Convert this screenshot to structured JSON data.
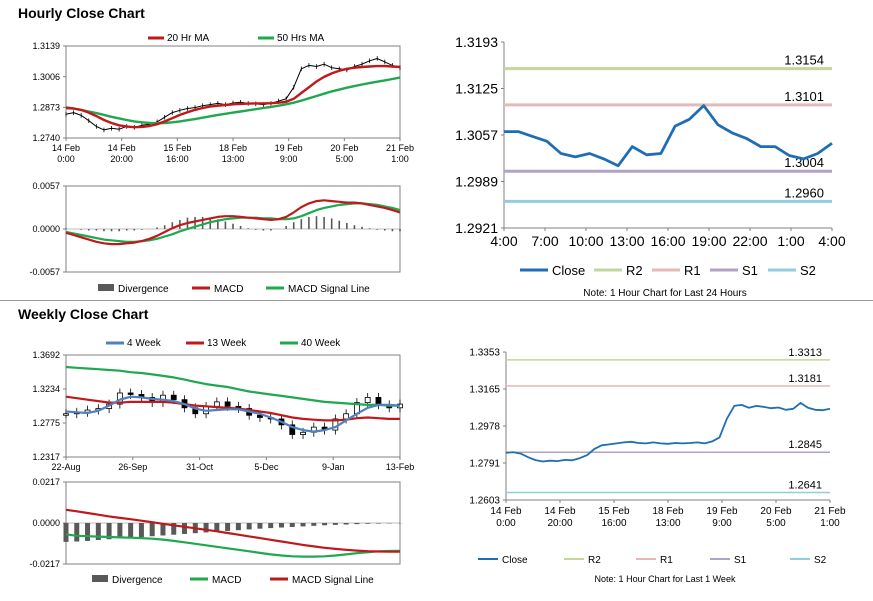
{
  "sections": {
    "hourly_title": "Hourly Close Chart",
    "weekly_title": "Weekly Close Chart"
  },
  "colors": {
    "red": "#c0191c",
    "green": "#1fa84f",
    "blue": "#4f81bd",
    "close_blue": "#1f6eb5",
    "r2": "#c3d69b",
    "r1": "#e6b9b8",
    "s1": "#b3a2c7",
    "s2": "#93cddd",
    "divergence": "#595959"
  },
  "chart_data": [
    {
      "id": "hourly-price",
      "type": "line",
      "ylim": [
        1.274,
        1.3139
      ],
      "yticks": [
        "1.3139",
        "1.3006",
        "1.2873",
        "1.2740"
      ],
      "xticks": [
        {
          "l1": "14 Feb",
          "l2": "0:00"
        },
        {
          "l1": "14 Feb",
          "l2": "20:00"
        },
        {
          "l1": "15 Feb",
          "l2": "16:00"
        },
        {
          "l1": "18 Feb",
          "l2": "13:00"
        },
        {
          "l1": "19 Feb",
          "l2": "9:00"
        },
        {
          "l1": "20 Feb",
          "l2": "5:00"
        },
        {
          "l1": "21 Feb",
          "l2": "1:00"
        }
      ],
      "legend": [
        "20 Hr MA",
        "50 Hrs MA"
      ],
      "series": [
        {
          "name": "Price",
          "values": [
            1.2843,
            1.285,
            1.2838,
            1.2815,
            1.279,
            1.2775,
            1.2782,
            1.2778,
            1.279,
            1.2786,
            1.2795,
            1.28,
            1.281,
            1.283,
            1.285,
            1.286,
            1.2868,
            1.2872,
            1.288,
            1.2885,
            1.289,
            1.2885,
            1.2892,
            1.2895,
            1.289,
            1.2888,
            1.2885,
            1.289,
            1.29,
            1.291,
            1.296,
            1.304,
            1.3055,
            1.305,
            1.306,
            1.3045,
            1.304,
            1.3035,
            1.305,
            1.306,
            1.3075,
            1.3085,
            1.307,
            1.3055,
            1.3045
          ]
        },
        {
          "name": "20 Hr MA",
          "values": [
            1.287,
            1.2868,
            1.2862,
            1.285,
            1.2835,
            1.2818,
            1.2805,
            1.2795,
            1.279,
            1.2787,
            1.2788,
            1.2792,
            1.28,
            1.2812,
            1.2826,
            1.284,
            1.2852,
            1.2862,
            1.287,
            1.2876,
            1.288,
            1.2883,
            1.2886,
            1.2888,
            1.2889,
            1.289,
            1.289,
            1.2891,
            1.2893,
            1.2897,
            1.291,
            1.2935,
            1.296,
            1.2985,
            1.3005,
            1.302,
            1.3032,
            1.304,
            1.3045,
            1.3048,
            1.305,
            1.3052,
            1.3052,
            1.305,
            1.3048
          ]
        },
        {
          "name": "50 Hrs MA",
          "values": [
            1.2873,
            1.2868,
            1.2862,
            1.2855,
            1.2848,
            1.284,
            1.2832,
            1.2825,
            1.2818,
            1.2812,
            1.2808,
            1.2805,
            1.2804,
            1.2805,
            1.2808,
            1.2812,
            1.2817,
            1.2822,
            1.2828,
            1.2834,
            1.284,
            1.2845,
            1.285,
            1.2855,
            1.286,
            1.2865,
            1.287,
            1.2875,
            1.288,
            1.2886,
            1.2893,
            1.2902,
            1.2912,
            1.2922,
            1.2932,
            1.2942,
            1.295,
            1.2958,
            1.2965,
            1.2972,
            1.2978,
            1.2984,
            1.299,
            1.2996,
            1.3002
          ]
        }
      ]
    },
    {
      "id": "hourly-macd",
      "type": "line",
      "ylim": [
        -0.0057,
        0.0057
      ],
      "yticks": [
        "0.0057",
        "0.0000",
        "-0.0057"
      ],
      "legend": [
        "Divergence",
        "MACD",
        "MACD Signal Line"
      ],
      "series": [
        {
          "name": "Divergence",
          "values": [
            0.0001,
            0.0,
            -0.0001,
            -0.0002,
            -0.0002,
            -0.0003,
            -0.0003,
            -0.0003,
            -0.0002,
            -0.0002,
            -0.0001,
            0.0,
            0.0002,
            0.0005,
            0.0009,
            0.0012,
            0.0015,
            0.0016,
            0.0016,
            0.0015,
            0.0013,
            0.001,
            0.0007,
            0.0004,
            0.0001,
            -0.0001,
            -0.0002,
            -0.0002,
            0.0,
            0.0004,
            0.0009,
            0.0013,
            0.0016,
            0.0017,
            0.0016,
            0.0014,
            0.0011,
            0.0008,
            0.0005,
            0.0003,
            0.0001,
            -0.0001,
            -0.0002,
            -0.0003,
            -0.0003
          ]
        },
        {
          "name": "MACD",
          "values": [
            -0.0005,
            -0.0008,
            -0.0011,
            -0.0014,
            -0.0017,
            -0.0019,
            -0.002,
            -0.002,
            -0.0019,
            -0.0018,
            -0.0016,
            -0.0013,
            -0.0009,
            -0.0004,
            0.0001,
            0.0005,
            0.0008,
            0.001,
            0.0012,
            0.0014,
            0.0016,
            0.0017,
            0.0017,
            0.0016,
            0.0015,
            0.0014,
            0.0013,
            0.0012,
            0.0013,
            0.0016,
            0.0022,
            0.0029,
            0.0034,
            0.0037,
            0.0038,
            0.0037,
            0.0036,
            0.0035,
            0.0035,
            0.0034,
            0.0032,
            0.003,
            0.0028,
            0.0025,
            0.0022
          ]
        },
        {
          "name": "MACD Signal Line",
          "values": [
            -0.0004,
            -0.0006,
            -0.0008,
            -0.001,
            -0.0012,
            -0.0014,
            -0.0015,
            -0.0016,
            -0.0017,
            -0.0017,
            -0.0016,
            -0.0015,
            -0.0013,
            -0.001,
            -0.0007,
            -0.0003,
            0.0,
            0.0003,
            0.0006,
            0.0009,
            0.0011,
            0.0013,
            0.0014,
            0.0015,
            0.0015,
            0.0015,
            0.0014,
            0.0014,
            0.0013,
            0.0013,
            0.0014,
            0.0017,
            0.0021,
            0.0025,
            0.0028,
            0.003,
            0.0032,
            0.0033,
            0.0034,
            0.0034,
            0.0033,
            0.0032,
            0.003,
            0.0028,
            0.0025
          ]
        }
      ]
    },
    {
      "id": "hourly-pivot",
      "type": "line",
      "ylim": [
        1.2921,
        1.3193
      ],
      "yticks": [
        "1.3193",
        "1.3125",
        "1.3057",
        "1.2989",
        "1.2921"
      ],
      "xticks": [
        "4:00",
        "7:00",
        "10:00",
        "13:00",
        "16:00",
        "19:00",
        "22:00",
        "1:00",
        "4:00"
      ],
      "levels": [
        {
          "name": "R2",
          "value": 1.3154,
          "label": "1.3154"
        },
        {
          "name": "R1",
          "value": 1.3101,
          "label": "1.3101"
        },
        {
          "name": "S1",
          "value": 1.3004,
          "label": "1.3004"
        },
        {
          "name": "S2",
          "value": 1.296,
          "label": "1.2960"
        }
      ],
      "legend": [
        "Close",
        "R2",
        "R1",
        "S1",
        "S2"
      ],
      "note": "Note: 1 Hour Chart for Last 24 Hours",
      "series": [
        {
          "name": "Close",
          "values": [
            1.3062,
            1.3062,
            1.3055,
            1.3048,
            1.303,
            1.3025,
            1.303,
            1.3022,
            1.3012,
            1.304,
            1.3028,
            1.303,
            1.307,
            1.308,
            1.31,
            1.3072,
            1.306,
            1.3052,
            1.304,
            1.304,
            1.3027,
            1.3022,
            1.303,
            1.3045
          ]
        }
      ]
    },
    {
      "id": "weekly-price",
      "type": "line",
      "ylim": [
        1.2317,
        1.3692
      ],
      "yticks": [
        "1.3692",
        "1.3234",
        "1.2775",
        "1.2317"
      ],
      "xticks": [
        "22-Aug",
        "26-Sep",
        "31-Oct",
        "5-Dec",
        "9-Jan",
        "13-Feb"
      ],
      "legend": [
        "4 Week",
        "13 Week",
        "40 Week"
      ],
      "series": [
        {
          "name": "Price",
          "values": [
            1.29,
            1.292,
            1.295,
            1.297,
            1.303,
            1.318,
            1.316,
            1.312,
            1.305,
            1.315,
            1.309,
            1.298,
            1.29,
            1.3,
            1.306,
            1.3,
            1.297,
            1.288,
            1.285,
            1.283,
            1.275,
            1.262,
            1.265,
            1.272,
            1.268,
            1.283,
            1.29,
            1.305,
            1.312,
            1.302,
            1.298,
            1.303
          ]
        },
        {
          "name": "4 Week",
          "values": [
            1.293,
            1.292,
            1.291,
            1.294,
            1.301,
            1.309,
            1.313,
            1.312,
            1.31,
            1.309,
            1.307,
            1.303,
            1.297,
            1.294,
            1.295,
            1.296,
            1.296,
            1.293,
            1.29,
            1.285,
            1.279,
            1.272,
            1.268,
            1.266,
            1.268,
            1.272,
            1.281,
            1.29,
            1.298,
            1.302,
            1.302,
            1.301
          ]
        },
        {
          "name": "13 Week",
          "values": [
            1.313,
            1.311,
            1.309,
            1.307,
            1.305,
            1.305,
            1.306,
            1.306,
            1.306,
            1.306,
            1.305,
            1.303,
            1.301,
            1.3,
            1.299,
            1.298,
            1.297,
            1.295,
            1.293,
            1.291,
            1.288,
            1.285,
            1.283,
            1.282,
            1.281,
            1.281,
            1.282,
            1.284,
            1.285,
            1.284,
            1.283,
            1.283
          ]
        },
        {
          "name": "40 Week",
          "values": [
            1.353,
            1.352,
            1.351,
            1.35,
            1.349,
            1.348,
            1.346,
            1.345,
            1.343,
            1.341,
            1.339,
            1.336,
            1.333,
            1.33,
            1.328,
            1.326,
            1.323,
            1.32,
            1.318,
            1.316,
            1.314,
            1.312,
            1.31,
            1.308,
            1.306,
            1.305,
            1.304,
            1.303,
            1.302,
            1.302,
            1.301,
            1.301
          ]
        }
      ]
    },
    {
      "id": "weekly-macd",
      "type": "line",
      "ylim": [
        -0.0217,
        0.0217
      ],
      "yticks": [
        "0.0217",
        "0.0000",
        "-0.0217"
      ],
      "legend": [
        "Divergence",
        "MACD",
        "MACD Signal Line"
      ],
      "series": [
        {
          "name": "Divergence",
          "values": [
            -0.01,
            -0.0098,
            -0.0095,
            -0.009,
            -0.0086,
            -0.0082,
            -0.0078,
            -0.0074,
            -0.007,
            -0.0066,
            -0.0062,
            -0.0058,
            -0.0054,
            -0.005,
            -0.0046,
            -0.0042,
            -0.0038,
            -0.0034,
            -0.003,
            -0.0027,
            -0.0024,
            -0.0021,
            -0.0018,
            -0.0015,
            -0.0012,
            -0.001,
            -0.0008,
            -0.0006,
            -0.0004,
            -0.0003,
            -0.0002,
            -0.0001
          ]
        },
        {
          "name": "MACD",
          "values": [
            -0.006,
            -0.0068,
            -0.007,
            -0.0072,
            -0.0074,
            -0.0076,
            -0.0078,
            -0.008,
            -0.0083,
            -0.0088,
            -0.0095,
            -0.0102,
            -0.011,
            -0.0118,
            -0.0126,
            -0.0134,
            -0.0142,
            -0.015,
            -0.0158,
            -0.0166,
            -0.0172,
            -0.0176,
            -0.0178,
            -0.0178,
            -0.0176,
            -0.0172,
            -0.0166,
            -0.016,
            -0.0155,
            -0.015,
            -0.0148,
            -0.0147
          ]
        },
        {
          "name": "MACD Signal Line",
          "values": [
            0.007,
            0.0062,
            0.0053,
            0.0044,
            0.0035,
            0.0027,
            0.002,
            0.0012,
            0.0004,
            -0.0004,
            -0.0012,
            -0.002,
            -0.0028,
            -0.0036,
            -0.0044,
            -0.0053,
            -0.0062,
            -0.0071,
            -0.008,
            -0.0089,
            -0.0098,
            -0.0107,
            -0.0116,
            -0.0124,
            -0.0131,
            -0.0137,
            -0.0142,
            -0.0146,
            -0.0149,
            -0.0151,
            -0.0152,
            -0.0152
          ]
        }
      ]
    },
    {
      "id": "weekly-pivot",
      "type": "line",
      "ylim": [
        1.2603,
        1.3353
      ],
      "yticks": [
        "1.3353",
        "1.3165",
        "1.2978",
        "1.2791",
        "1.2603"
      ],
      "xticks": [
        {
          "l1": "14 Feb",
          "l2": "0:00"
        },
        {
          "l1": "14 Feb",
          "l2": "20:00"
        },
        {
          "l1": "15 Feb",
          "l2": "16:00"
        },
        {
          "l1": "18 Feb",
          "l2": "13:00"
        },
        {
          "l1": "19 Feb",
          "l2": "9:00"
        },
        {
          "l1": "20 Feb",
          "l2": "5:00"
        },
        {
          "l1": "21 Feb",
          "l2": "1:00"
        }
      ],
      "levels": [
        {
          "name": "R2",
          "value": 1.3313,
          "label": "1.3313"
        },
        {
          "name": "R1",
          "value": 1.3181,
          "label": "1.3181"
        },
        {
          "name": "S1",
          "value": 1.2845,
          "label": "1.2845"
        },
        {
          "name": "S2",
          "value": 1.2641,
          "label": "1.2641"
        }
      ],
      "legend": [
        "Close",
        "R2",
        "R1",
        "S1",
        "S2"
      ],
      "note": "Note: 1 Hour Chart for Last 1 Week",
      "series": [
        {
          "name": "Close",
          "values": [
            1.2842,
            1.2845,
            1.2838,
            1.282,
            1.2805,
            1.2798,
            1.2802,
            1.28,
            1.2806,
            1.2804,
            1.2815,
            1.283,
            1.2862,
            1.288,
            1.2885,
            1.289,
            1.2895,
            1.2898,
            1.2892,
            1.289,
            1.2895,
            1.289,
            1.2888,
            1.2892,
            1.289,
            1.2892,
            1.2895,
            1.289,
            1.29,
            1.292,
            1.3015,
            1.308,
            1.3085,
            1.307,
            1.308,
            1.3075,
            1.3068,
            1.3072,
            1.306,
            1.3065,
            1.3095,
            1.307,
            1.306,
            1.3058,
            1.3065
          ]
        }
      ]
    }
  ]
}
